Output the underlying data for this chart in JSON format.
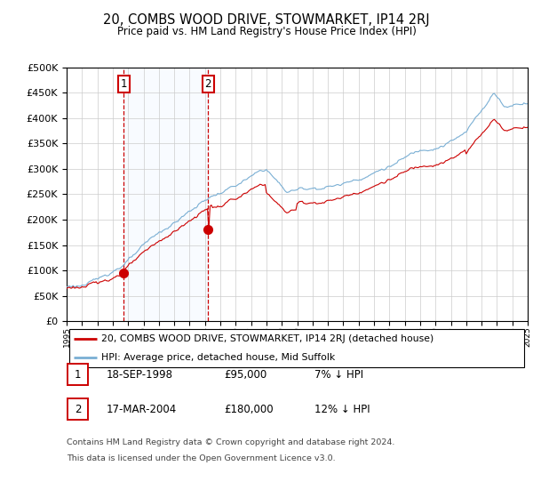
{
  "title": "20, COMBS WOOD DRIVE, STOWMARKET, IP14 2RJ",
  "subtitle": "Price paid vs. HM Land Registry's House Price Index (HPI)",
  "x_start_year": 1995,
  "x_end_year": 2025,
  "y_min": 0,
  "y_max": 500000,
  "y_ticks": [
    0,
    50000,
    100000,
    150000,
    200000,
    250000,
    300000,
    350000,
    400000,
    450000,
    500000
  ],
  "hpi_color": "#7aafd4",
  "price_color": "#cc0000",
  "sale1_date": 1998.72,
  "sale1_price": 95000,
  "sale1_label": "1",
  "sale2_date": 2004.21,
  "sale2_price": 180000,
  "sale2_label": "2",
  "legend_line1": "20, COMBS WOOD DRIVE, STOWMARKET, IP14 2RJ (detached house)",
  "legend_line2": "HPI: Average price, detached house, Mid Suffolk",
  "table_row1_num": "1",
  "table_row1_date": "18-SEP-1998",
  "table_row1_price": "£95,000",
  "table_row1_hpi": "7% ↓ HPI",
  "table_row2_num": "2",
  "table_row2_date": "17-MAR-2004",
  "table_row2_price": "£180,000",
  "table_row2_hpi": "12% ↓ HPI",
  "footer_line1": "Contains HM Land Registry data © Crown copyright and database right 2024.",
  "footer_line2": "This data is licensed under the Open Government Licence v3.0.",
  "background_color": "#ffffff",
  "grid_color": "#cccccc",
  "vline_color": "#cc0000",
  "shade_color": "#ddeeff"
}
